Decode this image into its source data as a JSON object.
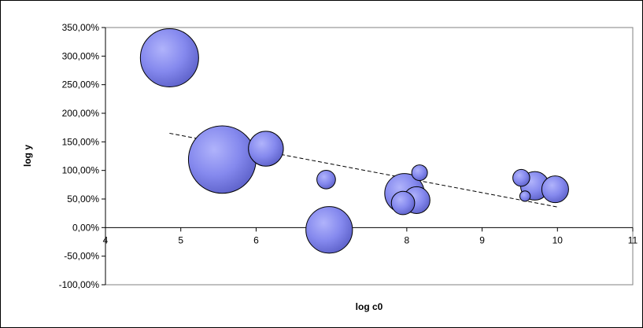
{
  "chart_data": {
    "type": "scatter",
    "subtype": "bubble",
    "title": "",
    "xlabel": "log c0",
    "ylabel": "log y",
    "xlim": [
      4,
      11
    ],
    "ylim": [
      -100,
      350
    ],
    "x_ticks": [
      4,
      5,
      6,
      7,
      8,
      9,
      10,
      11
    ],
    "x_tick_labels": [
      "4",
      "5",
      "6",
      "7",
      "8",
      "9",
      "10",
      "11"
    ],
    "y_ticks": [
      350,
      300,
      250,
      200,
      150,
      100,
      50,
      0,
      -50,
      -100
    ],
    "y_tick_labels": [
      "350,00%",
      "300,00%",
      "250,00%",
      "200,00%",
      "150,00%",
      "100,00%",
      "50,00%",
      "0,00%",
      "-50,00%",
      "-100,00%"
    ],
    "grid": false,
    "bubble_color": "#8a8ef0",
    "series": [
      {
        "points": [
          {
            "x": 4.85,
            "y": 297,
            "size": 1.0
          },
          {
            "x": 5.55,
            "y": 119,
            "size": 1.16
          },
          {
            "x": 6.13,
            "y": 138,
            "size": 0.6
          },
          {
            "x": 6.93,
            "y": 84,
            "size": 0.32
          },
          {
            "x": 6.97,
            "y": -4,
            "size": 0.8
          },
          {
            "x": 7.97,
            "y": 60,
            "size": 0.68
          },
          {
            "x": 7.95,
            "y": 43,
            "size": 0.4
          },
          {
            "x": 8.13,
            "y": 48,
            "size": 0.46
          },
          {
            "x": 8.17,
            "y": 96,
            "size": 0.27
          },
          {
            "x": 9.52,
            "y": 87,
            "size": 0.29
          },
          {
            "x": 9.7,
            "y": 73,
            "size": 0.49
          },
          {
            "x": 9.97,
            "y": 67,
            "size": 0.46
          },
          {
            "x": 9.57,
            "y": 55,
            "size": 0.18
          }
        ]
      }
    ],
    "trendline": {
      "x": [
        4.85,
        10.0
      ],
      "y": [
        165,
        36
      ],
      "style": "dashed"
    }
  }
}
